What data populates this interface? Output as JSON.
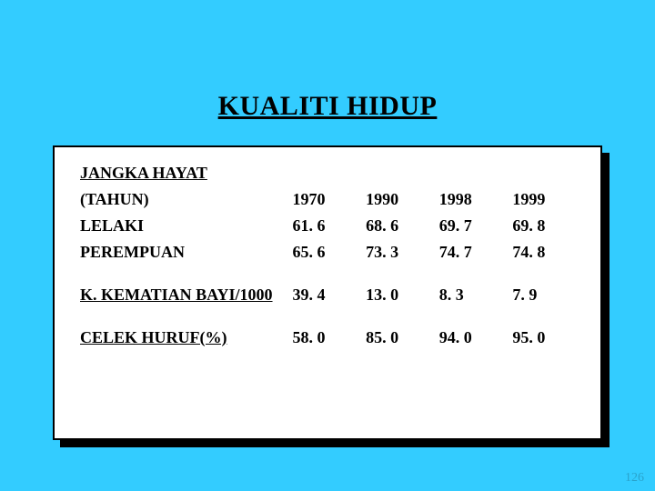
{
  "title": "KUALITI HIDUP",
  "section1_heading": "JANGKA HAYAT",
  "header_label": "(TAHUN)",
  "years": [
    "1970",
    "1990",
    "1998",
    "1999"
  ],
  "rows": [
    {
      "label": "LELAKI",
      "underline": false,
      "values": [
        "61. 6",
        "68. 6",
        "69. 7",
        "69. 8"
      ]
    },
    {
      "label": "PEREMPUAN",
      "underline": false,
      "values": [
        "65. 6",
        "73. 3",
        "74. 7",
        "74. 8"
      ]
    }
  ],
  "extra_rows": [
    {
      "label": "K. KEMATIAN BAYI/1000",
      "underline": true,
      "values": [
        "39. 4",
        "13. 0",
        "8. 3",
        "7. 9"
      ]
    },
    {
      "label": "CELEK HURUF(%)",
      "underline": true,
      "values": [
        "58. 0",
        "85. 0",
        "94. 0",
        "95. 0"
      ]
    }
  ],
  "footer": "126",
  "colors": {
    "background": "#33ccff",
    "card_bg": "#ffffff",
    "text": "#000000",
    "shadow": "#000000"
  }
}
